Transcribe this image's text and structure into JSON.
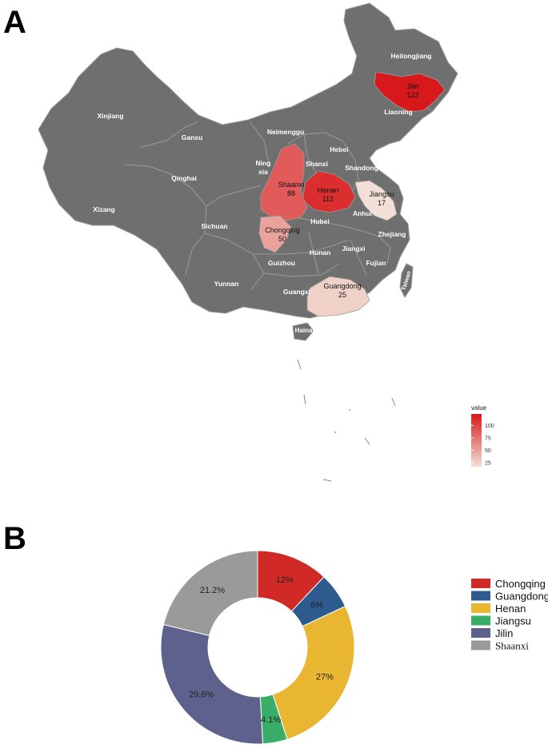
{
  "panels": {
    "a": "A",
    "b": "B"
  },
  "chart_data": [
    {
      "type": "heatmap",
      "regions": [
        {
          "name": "Jilin",
          "value": 123
        },
        {
          "name": "Henan",
          "value": 112
        },
        {
          "name": "Shaanxi",
          "value": 88
        },
        {
          "name": "Chongqing",
          "value": 50
        },
        {
          "name": "Guangdong",
          "value": 25
        },
        {
          "name": "Jiangsu",
          "value": 17
        }
      ],
      "other_regions": [
        "Heilongjiang",
        "Liaoning",
        "Xinjiang",
        "Gansu",
        "Neimenggu",
        "Hebei",
        "Ning xia",
        "Shanxi",
        "Shandong",
        "Qinghai",
        "Xizang",
        "Anhui",
        "Sichuan",
        "Hubei",
        "Zhejiang",
        "Jiangxi",
        "Hunan",
        "Guizhou",
        "Fujian",
        "Yunnan",
        "Guangxi",
        "Taiwan",
        "Hainan"
      ],
      "legend": {
        "title": "value",
        "ticks": [
          100,
          75,
          50,
          25
        ],
        "range": [
          17,
          123
        ],
        "low_color": "#f2e0d6",
        "high_color": "#d7191c",
        "placement": "right"
      },
      "no_data_color": "#6f6f6f"
    },
    {
      "type": "pie",
      "donut": true,
      "slices": [
        {
          "name": "Chongqing",
          "label": "12%",
          "value": 12,
          "color": "#d12a26"
        },
        {
          "name": "Guangdong",
          "label": "6%",
          "value": 6,
          "color": "#2d5b8e"
        },
        {
          "name": "Henan",
          "label": "27%",
          "value": 27,
          "color": "#e8b630"
        },
        {
          "name": "Jiangsu",
          "label": "4.1%",
          "value": 4.1,
          "color": "#3aae68"
        },
        {
          "name": "Jilin",
          "label": "29.6%",
          "value": 29.6,
          "color": "#5d618b"
        },
        {
          "name": "Shaanxi",
          "label": "21.2%",
          "value": 21.2,
          "color": "#9a9a98"
        }
      ],
      "legend_placement": "right"
    }
  ]
}
